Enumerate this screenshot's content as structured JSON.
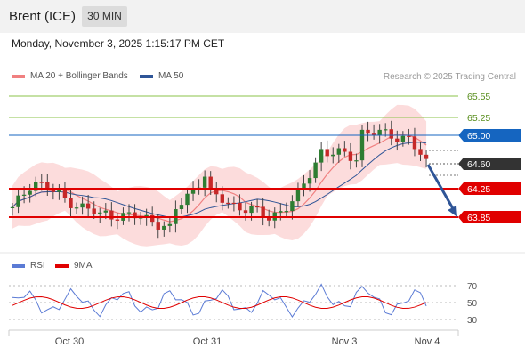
{
  "header": {
    "title": "Brent (ICE)",
    "period": "30 MIN",
    "datetime": "Monday, November 3, 2025 1:15:17 PM CET"
  },
  "legend": {
    "ma20": "MA 20 + Bollinger Bands",
    "ma50": "MA 50",
    "ma20_color": "#f08080",
    "ma50_color": "#2f5597"
  },
  "credit": "Research © 2025 Trading Central",
  "levels": [
    {
      "value": "65.55",
      "color": "#8bc34a",
      "kind": "line"
    },
    {
      "value": "65.25",
      "color": "#8bc34a",
      "kind": "line"
    },
    {
      "value": "65.00",
      "color": "#1565c0",
      "kind": "tag"
    },
    {
      "value": "64.60",
      "color": "#333333",
      "kind": "tag"
    },
    {
      "value": "64.25",
      "color": "#e00000",
      "kind": "tag"
    },
    {
      "value": "63.85",
      "color": "#e00000",
      "kind": "tag"
    }
  ],
  "rsi_legend": {
    "rsi": "RSI",
    "ma": "9MA",
    "rsi_color": "#5b7bd5",
    "ma_color": "#e00000"
  },
  "rsi_levels": [
    "70",
    "50",
    "30"
  ],
  "x_labels": [
    "Oct 30",
    "Oct 31",
    "Nov 3",
    "Nov 4"
  ]
}
